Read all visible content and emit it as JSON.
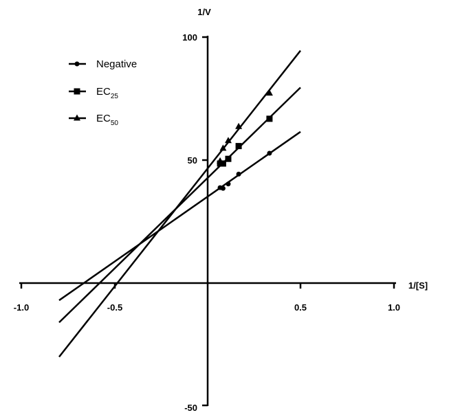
{
  "chart_data": {
    "type": "line",
    "xlabel": "1/[S]",
    "ylabel": "1/V",
    "xlim": [
      -1.0,
      1.0
    ],
    "ylim": [
      -50,
      100
    ],
    "x_ticks": [
      "-1.0",
      "-0.5",
      "0.5",
      "1.0"
    ],
    "y_ticks": [
      "100",
      "50",
      "-50"
    ],
    "grid": false,
    "legend_position": "top-left",
    "series": [
      {
        "name": "Negative",
        "name_base": "Negative",
        "name_sub": "",
        "marker": "circle",
        "x": [
          0.067,
          0.083,
          0.111,
          0.167,
          0.333
        ],
        "y": [
          38.8,
          38.5,
          40.3,
          44.3,
          52.8
        ],
        "fit_line": {
          "x": [
            -0.8,
            0.5
          ],
          "y": [
            -7,
            61.5
          ]
        }
      },
      {
        "name": "EC25",
        "name_base": "EC",
        "name_sub": "25",
        "marker": "square",
        "x": [
          0.067,
          0.083,
          0.111,
          0.167,
          0.333
        ],
        "y": [
          48.6,
          48.6,
          50.5,
          55.7,
          66.8
        ],
        "fit_line": {
          "x": [
            -0.8,
            0.5
          ],
          "y": [
            -16,
            79.5
          ]
        }
      },
      {
        "name": "EC50",
        "name_base": "EC",
        "name_sub": "50",
        "marker": "triangle",
        "x": [
          0.067,
          0.083,
          0.111,
          0.167,
          0.333
        ],
        "y": [
          49.6,
          54.8,
          57.9,
          63.6,
          77.2
        ],
        "fit_line": {
          "x": [
            -0.8,
            0.5
          ],
          "y": [
            -30,
            94.5
          ]
        }
      }
    ]
  }
}
